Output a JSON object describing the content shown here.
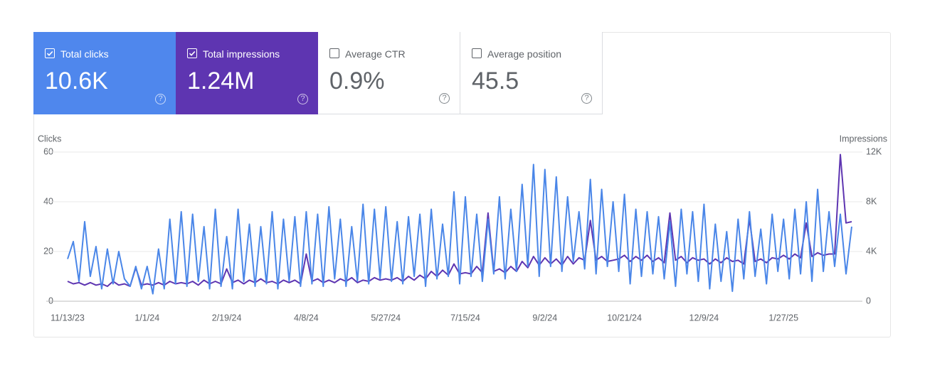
{
  "cards": [
    {
      "label": "Total clicks",
      "value": "10.6K",
      "checked": true,
      "color": "#4f87ed"
    },
    {
      "label": "Total impressions",
      "value": "1.24M",
      "checked": true,
      "color": "#5e35b1"
    },
    {
      "label": "Average CTR",
      "value": "0.9%",
      "checked": false,
      "color": "#ffffff"
    },
    {
      "label": "Average position",
      "value": "45.5",
      "checked": false,
      "color": "#ffffff"
    }
  ],
  "chart_data": {
    "type": "line",
    "y_label": "Clicks",
    "y2_label": "Impressions",
    "categories": [
      "11/13/23",
      null,
      null,
      null,
      null,
      null,
      null,
      null,
      null,
      null,
      null,
      null,
      null,
      null,
      "1/1/24",
      null,
      null,
      null,
      null,
      null,
      null,
      null,
      null,
      null,
      null,
      null,
      null,
      null,
      "2/19/24",
      null,
      null,
      null,
      null,
      null,
      null,
      null,
      null,
      null,
      null,
      null,
      null,
      null,
      "4/8/24",
      null,
      null,
      null,
      null,
      null,
      null,
      null,
      null,
      null,
      null,
      null,
      null,
      null,
      "5/27/24",
      null,
      null,
      null,
      null,
      null,
      null,
      null,
      null,
      null,
      null,
      null,
      null,
      null,
      "7/15/24",
      null,
      null,
      null,
      null,
      null,
      null,
      null,
      null,
      null,
      null,
      null,
      null,
      null,
      "9/2/24",
      null,
      null,
      null,
      null,
      null,
      null,
      null,
      null,
      null,
      null,
      null,
      null,
      null,
      "10/21/24",
      null,
      null,
      null,
      null,
      null,
      null,
      null,
      null,
      null,
      null,
      null,
      null,
      null,
      "12/9/24",
      null,
      null,
      null,
      null,
      null,
      null,
      null,
      null,
      null,
      null,
      null,
      null,
      null,
      "1/27/25",
      null,
      null,
      null,
      null,
      null,
      null,
      null,
      null,
      null,
      null,
      null,
      null
    ],
    "series": [
      {
        "name": "Clicks",
        "color": "#4a86e8",
        "values": [
          17,
          24,
          8,
          32,
          10,
          22,
          5,
          21,
          7,
          20,
          9,
          6,
          14,
          5,
          14,
          3,
          21,
          5,
          33,
          7,
          36,
          6,
          35,
          8,
          30,
          5,
          37,
          6,
          26,
          5,
          37,
          8,
          31,
          6,
          30,
          7,
          36,
          5,
          33,
          8,
          34,
          6,
          36,
          7,
          35,
          6,
          38,
          9,
          33,
          6,
          30,
          8,
          39,
          7,
          37,
          9,
          38,
          8,
          32,
          7,
          34,
          10,
          35,
          6,
          37,
          9,
          31,
          10,
          44,
          7,
          42,
          10,
          35,
          8,
          33,
          11,
          42,
          9,
          37,
          12,
          47,
          14,
          55,
          10,
          53,
          14,
          50,
          12,
          42,
          16,
          36,
          13,
          49,
          11,
          45,
          14,
          40,
          12,
          43,
          7,
          37,
          10,
          36,
          11,
          34,
          9,
          32,
          6,
          37,
          11,
          36,
          8,
          39,
          5,
          31,
          8,
          28,
          4,
          33,
          9,
          36,
          10,
          29,
          7,
          35,
          12,
          33,
          9,
          37,
          11,
          40,
          8,
          45,
          12,
          36,
          14,
          35,
          11,
          30
        ]
      },
      {
        "name": "Impressions",
        "color": "#5e35b1",
        "axis": "y2",
        "values": [
          1600,
          1400,
          1500,
          1300,
          1500,
          1300,
          1400,
          1200,
          1600,
          1300,
          1400,
          1200,
          2700,
          1300,
          1400,
          1300,
          1500,
          1300,
          1600,
          1400,
          1500,
          1400,
          1600,
          1300,
          1700,
          1400,
          1600,
          1400,
          2600,
          1500,
          1700,
          1400,
          1700,
          1500,
          1800,
          1500,
          1600,
          1400,
          1700,
          1500,
          1700,
          1400,
          3800,
          1600,
          1800,
          1500,
          1700,
          1500,
          1800,
          1600,
          1900,
          1500,
          1700,
          1600,
          1900,
          1700,
          1800,
          1700,
          1900,
          1600,
          2000,
          1700,
          2100,
          1800,
          2400,
          2000,
          2500,
          2100,
          3000,
          2200,
          2300,
          2200,
          2800,
          2300,
          7100,
          2400,
          2600,
          2300,
          2800,
          2400,
          3200,
          2700,
          3600,
          2900,
          3500,
          3000,
          3400,
          2900,
          3600,
          3000,
          3500,
          3300,
          6500,
          3300,
          3600,
          3200,
          3300,
          3400,
          3700,
          3200,
          3600,
          3300,
          3700,
          3200,
          3500,
          3100,
          7100,
          3300,
          3600,
          3100,
          3500,
          3300,
          3400,
          3000,
          3400,
          3100,
          3500,
          3200,
          3300,
          3000,
          6600,
          3200,
          3400,
          3100,
          3500,
          3400,
          3700,
          3400,
          3800,
          3500,
          6300,
          3600,
          3900,
          3700,
          3800,
          3800,
          11800,
          6300,
          6400
        ]
      }
    ],
    "ylim": [
      0,
      60
    ],
    "yticks": [
      0,
      20,
      40,
      60
    ],
    "y2lim": [
      0,
      12000
    ],
    "y2ticks": [
      0,
      {
        "value": 4000,
        "label": "4K"
      },
      {
        "value": 8000,
        "label": "8K"
      },
      {
        "value": 12000,
        "label": "12K"
      }
    ],
    "grid": true
  }
}
